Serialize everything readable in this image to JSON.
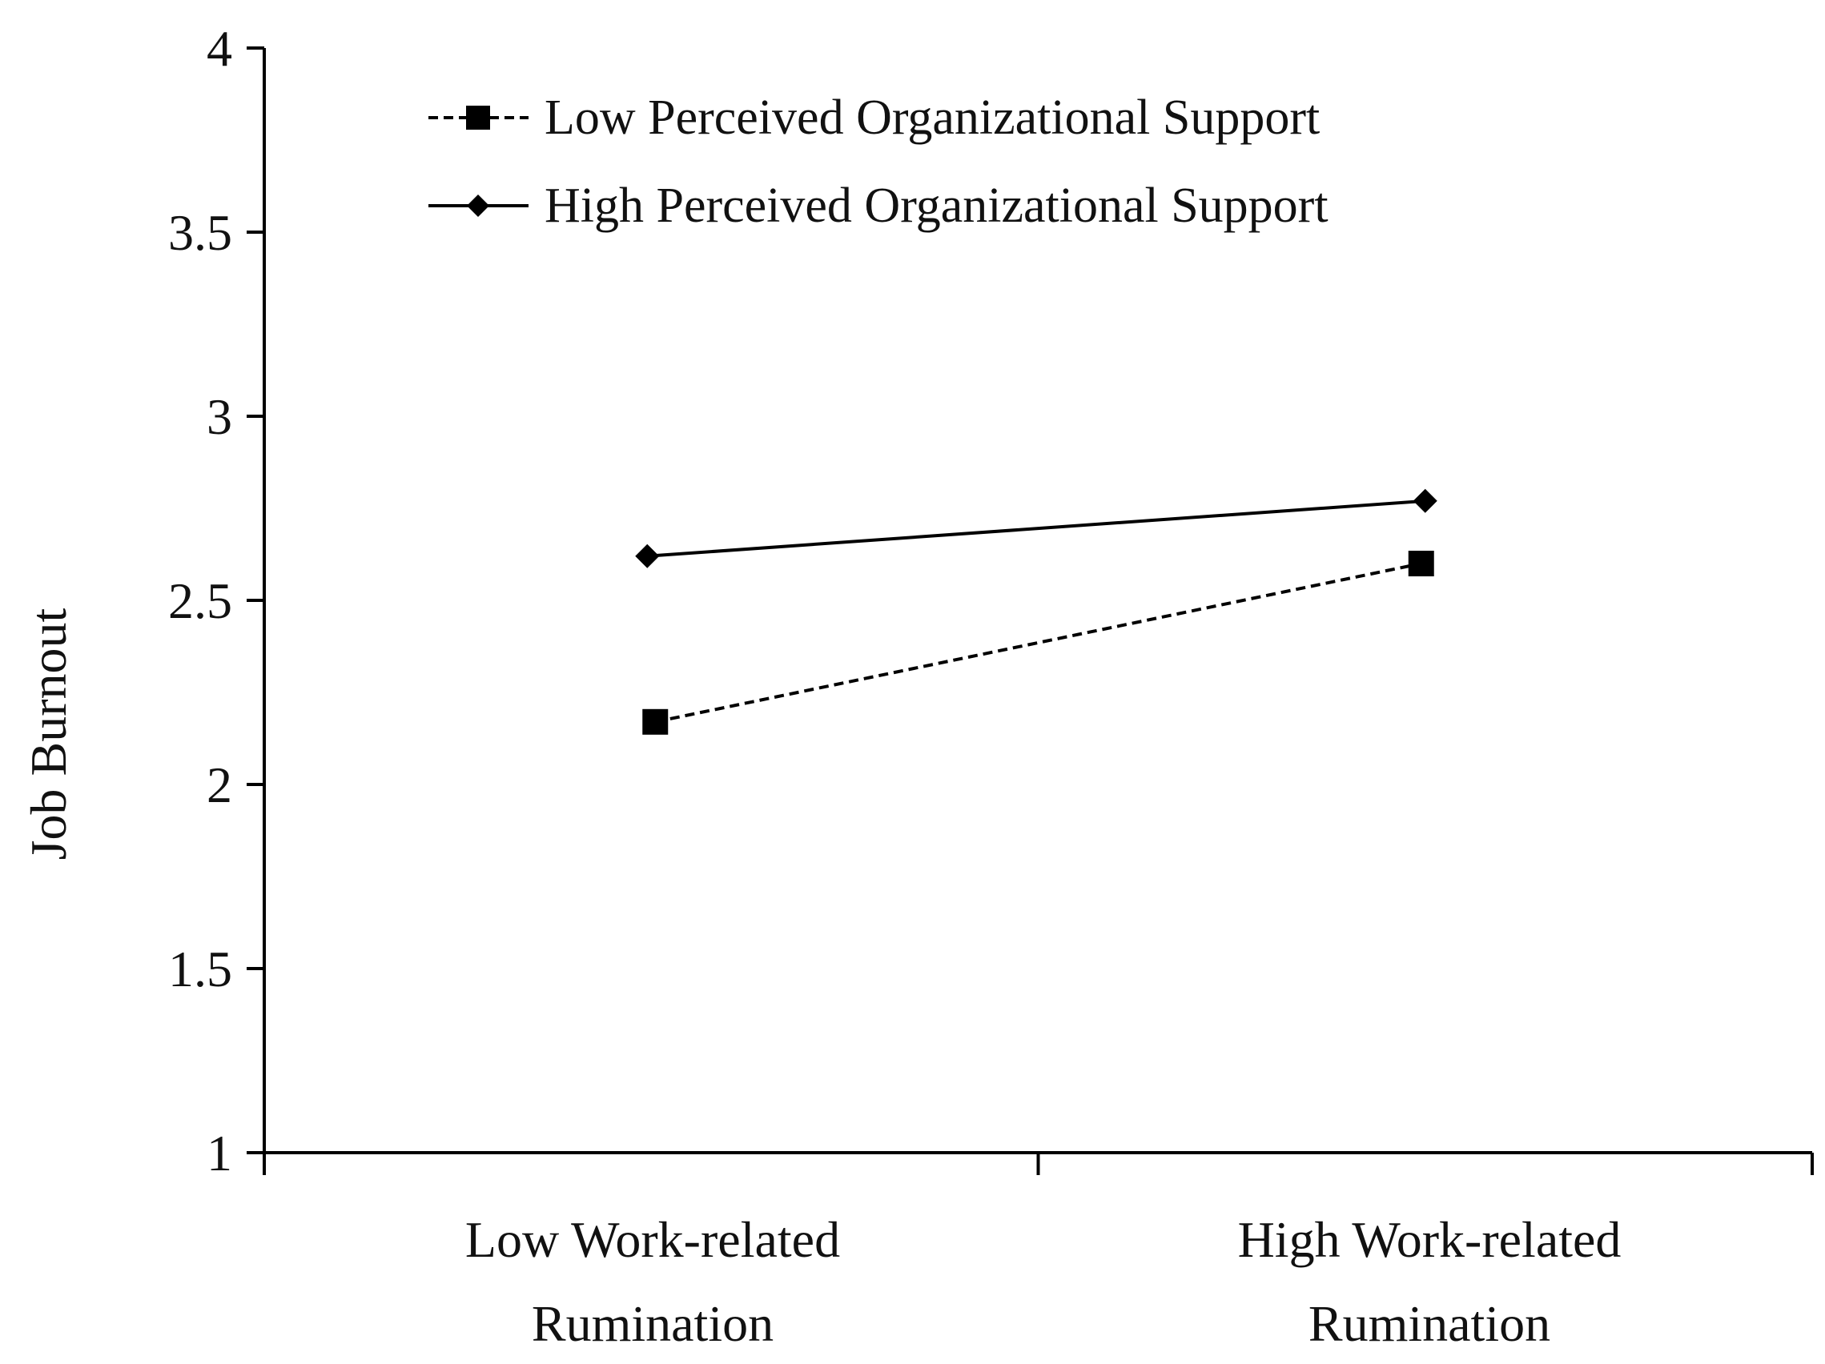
{
  "chart_data": {
    "type": "line",
    "title": "",
    "xlabel": "",
    "ylabel": "Job Burnout",
    "ylim": [
      1,
      4
    ],
    "yticks": [
      "1",
      "1.5",
      "2",
      "2.5",
      "3",
      "3.5",
      "4"
    ],
    "categories": [
      [
        "Low Work-related",
        "Rumination"
      ],
      [
        "High Work-related",
        "Rumination"
      ]
    ],
    "series": [
      {
        "name": "Low Perceived Organizational Support",
        "values": [
          2.17,
          2.6
        ],
        "line_style": "dashed",
        "marker": "square",
        "color": "#000000"
      },
      {
        "name": "High Perceived Organizational Support",
        "values": [
          2.62,
          2.77
        ],
        "line_style": "solid",
        "marker": "diamond",
        "color": "#000000"
      }
    ],
    "grid": false,
    "legend_position": "top-left"
  }
}
